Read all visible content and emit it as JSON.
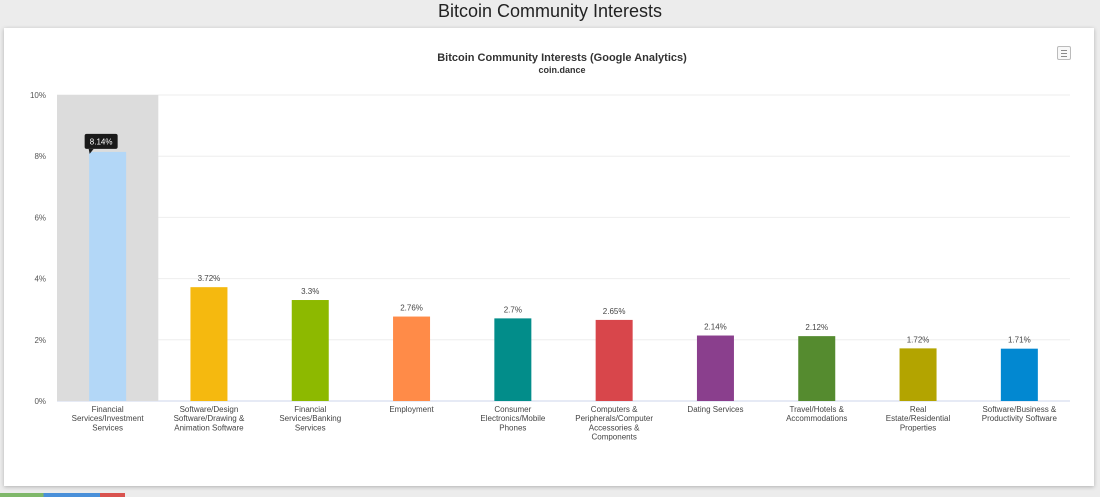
{
  "page": {
    "title": "Bitcoin Community Interests"
  },
  "chart_data": {
    "type": "bar",
    "title": "Bitcoin Community Interests (Google Analytics)",
    "subtitle": "coin.dance",
    "xlabel": "",
    "ylabel": "",
    "ylim": [
      0,
      10
    ],
    "yticks": [
      "0%",
      "2%",
      "4%",
      "6%",
      "8%",
      "10%"
    ],
    "grid": true,
    "highlighted_index": 0,
    "tooltip": "8.14%",
    "categories": [
      [
        "Financial",
        "Services/Investment",
        "Services"
      ],
      [
        "Software/Design",
        "Software/Drawing &",
        "Animation Software"
      ],
      [
        "Financial",
        "Services/Banking",
        "Services"
      ],
      [
        "Employment"
      ],
      [
        "Consumer",
        "Electronics/Mobile",
        "Phones"
      ],
      [
        "Computers &",
        "Peripherals/Computer",
        "Accessories &",
        "Components"
      ],
      [
        "Dating Services"
      ],
      [
        "Travel/Hotels &",
        "Accommodations"
      ],
      [
        "Real",
        "Estate/Residential",
        "Properties"
      ],
      [
        "Software/Business &",
        "Productivity Software"
      ]
    ],
    "values": [
      8.14,
      3.72,
      3.3,
      2.76,
      2.7,
      2.65,
      2.14,
      2.12,
      1.72,
      1.71
    ],
    "data_labels": [
      "",
      "3.72%",
      "3.3%",
      "2.76%",
      "2.7%",
      "2.65%",
      "2.14%",
      "2.12%",
      "1.72%",
      "1.71%"
    ],
    "colors": [
      "#b3d7f7",
      "#f5b90f",
      "#8db900",
      "#ff8b48",
      "#028d8a",
      "#d8464b",
      "#8a3f8d",
      "#558b2f",
      "#b3a400",
      "#0288d1"
    ]
  }
}
